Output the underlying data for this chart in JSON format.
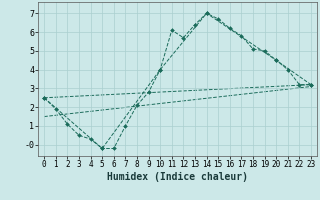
{
  "xlabel": "Humidex (Indice chaleur)",
  "bg_color": "#cce8e8",
  "line_color": "#1a6b5a",
  "grid_color": "#aacfcf",
  "xlim": [
    -0.5,
    23.5
  ],
  "ylim": [
    -0.6,
    7.6
  ],
  "xticks": [
    0,
    1,
    2,
    3,
    4,
    5,
    6,
    7,
    8,
    9,
    10,
    11,
    12,
    13,
    14,
    15,
    16,
    17,
    18,
    19,
    20,
    21,
    22,
    23
  ],
  "yticks": [
    0,
    1,
    2,
    3,
    4,
    5,
    6,
    7
  ],
  "line1_x": [
    0,
    1,
    2,
    3,
    4,
    5,
    6,
    7,
    8,
    9,
    10,
    11,
    12,
    13,
    14,
    15,
    16,
    17,
    18,
    19,
    20,
    21,
    22,
    23
  ],
  "line1_y": [
    2.5,
    1.9,
    1.1,
    0.5,
    0.3,
    -0.2,
    -0.2,
    1.0,
    2.1,
    2.8,
    4.0,
    6.1,
    5.7,
    6.4,
    7.0,
    6.7,
    6.2,
    5.8,
    5.1,
    5.0,
    4.5,
    4.0,
    3.2,
    3.2
  ],
  "line2_x": [
    0,
    5,
    10,
    14,
    20,
    23
  ],
  "line2_y": [
    2.5,
    -0.2,
    4.0,
    7.0,
    4.5,
    3.2
  ],
  "line3_x": [
    0,
    23
  ],
  "line3_y": [
    1.5,
    3.1
  ],
  "line4_x": [
    0,
    23
  ],
  "line4_y": [
    2.5,
    3.2
  ]
}
